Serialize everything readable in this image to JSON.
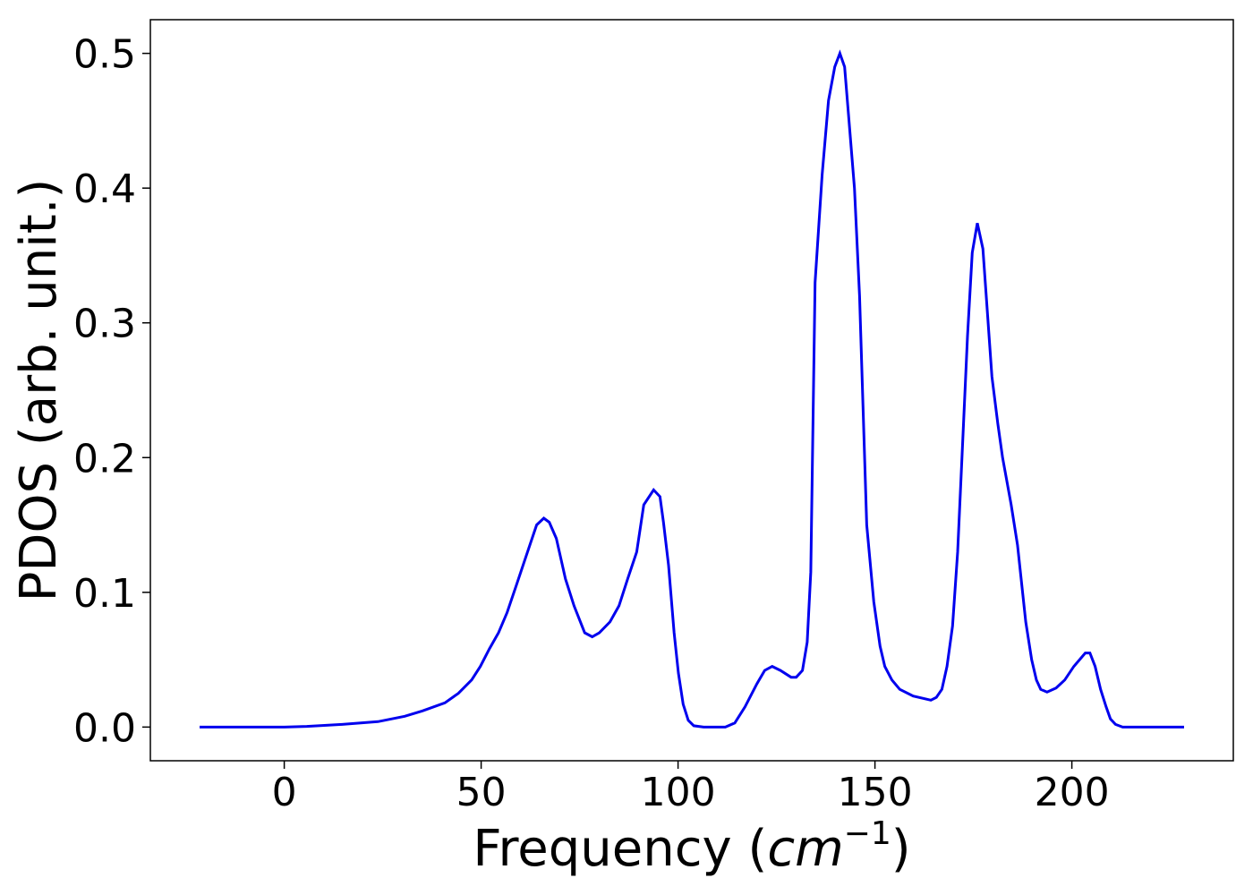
{
  "chart_data": {
    "type": "line",
    "x_label": [
      "Frequency (",
      "cm",
      "−1",
      ")"
    ],
    "y_label": "PDOS (arb. unit.)",
    "xlim": [
      -34,
      241
    ],
    "ylim": [
      -0.025,
      0.525
    ],
    "xticks": [
      0,
      50,
      100,
      150,
      200
    ],
    "yticks": [
      {
        "value": 0,
        "label": "0.0"
      },
      0.1,
      0.2,
      0.3,
      0.4,
      0.5
    ],
    "grid": false,
    "x": [
      -21.5,
      0,
      5.7,
      14.7,
      23.8,
      30.6,
      35.1,
      40.8,
      44.2,
      47.6,
      49.8,
      52.1,
      54.4,
      56.6,
      58.9,
      61.2,
      64.1,
      65.9,
      67.3,
      69.1,
      71.4,
      73.6,
      76.3,
      78.2,
      80,
      82.7,
      85,
      87.2,
      89.5,
      91.3,
      93.8,
      95.4,
      96.3,
      97.6,
      99,
      100.1,
      101.3,
      102.6,
      104,
      106.5,
      112,
      114.4,
      117,
      120,
      122,
      123.9,
      126,
      128.7,
      130,
      131.6,
      132.8,
      133.7,
      134.8,
      136.6,
      138.2,
      139.8,
      141.1,
      142.3,
      143.4,
      144.8,
      146.1,
      147.9,
      149.7,
      151.3,
      152.5,
      154.3,
      156.3,
      159.7,
      164.2,
      165.6,
      167,
      168.3,
      169.7,
      171,
      172.4,
      173.5,
      174.7,
      176,
      177.4,
      178.5,
      179.7,
      181.2,
      182.4,
      184.6,
      186.2,
      188.3,
      189.8,
      191,
      192.1,
      193.7,
      196,
      198.2,
      200.5,
      203.4,
      204.6,
      205.9,
      207.3,
      208.7,
      209.8,
      211.1,
      212.9,
      228.5
    ],
    "series": [
      {
        "color": "#0000ee",
        "values": [
          0,
          0,
          0.0005,
          0.002,
          0.004,
          0.008,
          0.012,
          0.018,
          0.025,
          0.035,
          0.045,
          0.058,
          0.07,
          0.085,
          0.105,
          0.125,
          0.15,
          0.155,
          0.152,
          0.14,
          0.11,
          0.09,
          0.07,
          0.067,
          0.07,
          0.078,
          0.09,
          0.11,
          0.13,
          0.165,
          0.176,
          0.171,
          0.152,
          0.12,
          0.07,
          0.04,
          0.017,
          0.005,
          0.001,
          0,
          0,
          0.003,
          0.015,
          0.032,
          0.042,
          0.045,
          0.042,
          0.037,
          0.037,
          0.042,
          0.063,
          0.115,
          0.33,
          0.41,
          0.465,
          0.49,
          0.5,
          0.49,
          0.45,
          0.4,
          0.32,
          0.15,
          0.093,
          0.06,
          0.045,
          0.035,
          0.028,
          0.023,
          0.02,
          0.022,
          0.028,
          0.045,
          0.075,
          0.13,
          0.22,
          0.29,
          0.352,
          0.374,
          0.355,
          0.31,
          0.26,
          0.225,
          0.2,
          0.165,
          0.135,
          0.078,
          0.05,
          0.035,
          0.028,
          0.026,
          0.029,
          0.035,
          0.045,
          0.055,
          0.055,
          0.045,
          0.028,
          0.015,
          0.006,
          0.002,
          0,
          0
        ]
      }
    ]
  }
}
